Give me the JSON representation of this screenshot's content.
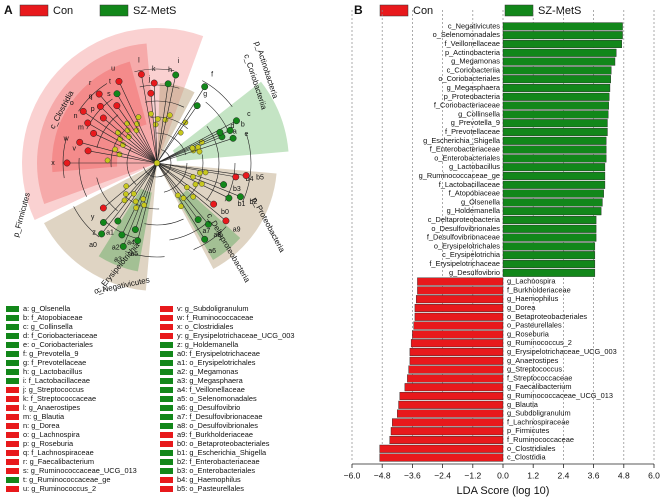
{
  "chart_data": {
    "type": "hbar",
    "panel": "B",
    "xlabel": "LDA Score (log 10)",
    "xlim": [
      -6,
      6
    ],
    "xticks": [
      {
        "value": -6,
        "label": "−6.0"
      },
      {
        "value": -4.8,
        "label": "−4.8"
      },
      {
        "value": -3.6,
        "label": "−3.6"
      },
      {
        "value": -2.4,
        "label": "−2.4"
      },
      {
        "value": -1.2,
        "label": "−1.2"
      },
      {
        "value": 0,
        "label": "0.0"
      },
      {
        "value": 1.2,
        "label": "1.2"
      },
      {
        "value": 2.4,
        "label": "2.4"
      },
      {
        "value": 3.6,
        "label": "3.6"
      },
      {
        "value": 4.8,
        "label": "4.8"
      },
      {
        "value": 6,
        "label": "6.0"
      }
    ],
    "grid": true,
    "categories": [
      "c_Negativicutes",
      "o_Selenomonadales",
      "f_Veillonellaceae",
      "p_Actinobacteria",
      "g_Megamonas",
      "c_Coriobacteriia",
      "o_Coriobacteriales",
      "g_Megasphaera",
      "p_Proteobacteria",
      "f_Coriobacteriaceae",
      "g_Collinsella",
      "g_Prevotella_9",
      "f_Prevotellaceae",
      "g_Escherichia_Shigella",
      "f_Enterobacteriaceae",
      "o_Enterobacteriales",
      "g_Lactobacillus",
      "g_Ruminococcaceae_ge",
      "f_Lactobacillaceae",
      "f_Atopobiaceae",
      "g_Olsenella",
      "g_Holdemanella",
      "c_Deltaproteobacteria",
      "o_Desulfovibrionales",
      "f_Desulfovibrionaceae",
      "o_Erysipelotrichales",
      "c_Erysipelotrichia",
      "f_Erysipelotrichaceae",
      "g_Desulfovibrio",
      "g_Lachnospira",
      "f_Burkholderiaceae",
      "g_Haemophilus",
      "g_Dorea",
      "o_Betaproteobacteriales",
      "o_Pasteurellales",
      "g_Roseburia",
      "g_Ruminococcus_2",
      "g_Erysipelotrichaceae_UCG_003",
      "g_Anaerostipes",
      "g_Streptococcus",
      "f_Streptococcaceae",
      "g_Faecalibacterium",
      "g_Ruminococcaceae_UCG_013",
      "g_Blautia",
      "g_Subdoligranulum",
      "f_Lachnospiraceae",
      "p_Firmicutes",
      "f_Ruminococcaceae",
      "o_Clostridiales",
      "c_Clostridia"
    ],
    "series": [
      {
        "name": "Con",
        "color": "#e8191c",
        "values": [
          null,
          null,
          null,
          null,
          null,
          null,
          null,
          null,
          null,
          null,
          null,
          null,
          null,
          null,
          null,
          null,
          null,
          null,
          null,
          null,
          null,
          null,
          null,
          null,
          null,
          null,
          null,
          null,
          null,
          -3.4,
          -3.4,
          -3.45,
          -3.5,
          -3.5,
          -3.55,
          -3.6,
          -3.65,
          -3.7,
          -3.7,
          -3.75,
          -3.8,
          -3.9,
          -4.1,
          -4.15,
          -4.2,
          -4.4,
          -4.45,
          -4.5,
          -4.9,
          -4.9
        ]
      },
      {
        "name": "SZ-MetS",
        "color": "#12871a",
        "values": [
          4.75,
          4.75,
          4.72,
          4.5,
          4.45,
          4.3,
          4.28,
          4.25,
          4.22,
          4.2,
          4.18,
          4.15,
          4.15,
          4.1,
          4.1,
          4.1,
          4.05,
          4.05,
          4.05,
          4.0,
          3.95,
          3.9,
          3.7,
          3.7,
          3.7,
          3.65,
          3.65,
          3.65,
          3.65,
          null,
          null,
          null,
          null,
          null,
          null,
          null,
          null,
          null,
          null,
          null,
          null,
          null,
          null,
          null,
          null,
          null,
          null,
          null,
          null,
          null
        ]
      }
    ]
  },
  "cladogram": {
    "panel": "A",
    "clade_labels": [
      "p_Firmicutes",
      "c_Clostridia",
      "c_Erysipelotrichia",
      "c_Negativicutes",
      "p_Actinobacteria",
      "c_Coriobacteriia",
      "p_Proteobacteria",
      "c_Deltaproteobacteria"
    ],
    "legend": [
      {
        "key": "a",
        "label": "a: g_Olsenella",
        "color": "#12871a"
      },
      {
        "key": "b",
        "label": "b: f_Atopobiaceae",
        "color": "#12871a"
      },
      {
        "key": "c",
        "label": "c: g_Collinsella",
        "color": "#12871a"
      },
      {
        "key": "d",
        "label": "d: f_Coriobacteriaceae",
        "color": "#12871a"
      },
      {
        "key": "e",
        "label": "e: o_Coriobacteriales",
        "color": "#12871a"
      },
      {
        "key": "f",
        "label": "f: g_Prevotella_9",
        "color": "#12871a"
      },
      {
        "key": "g",
        "label": "g: f_Prevotellaceae",
        "color": "#12871a"
      },
      {
        "key": "h",
        "label": "h: g_Lactobacillus",
        "color": "#12871a"
      },
      {
        "key": "i",
        "label": "i: f_Lactobacillaceae",
        "color": "#12871a"
      },
      {
        "key": "j",
        "label": "j: g_Streptococcus",
        "color": "#e8191c"
      },
      {
        "key": "k",
        "label": "k: f_Streptococcaceae",
        "color": "#e8191c"
      },
      {
        "key": "l",
        "label": "l: g_Anaerostipes",
        "color": "#e8191c"
      },
      {
        "key": "m",
        "label": "m: g_Blautia",
        "color": "#e8191c"
      },
      {
        "key": "n",
        "label": "n: g_Dorea",
        "color": "#e8191c"
      },
      {
        "key": "o",
        "label": "o: g_Lachnospira",
        "color": "#e8191c"
      },
      {
        "key": "p",
        "label": "p: g_Roseburia",
        "color": "#e8191c"
      },
      {
        "key": "q",
        "label": "q: f_Lachnospiraceae",
        "color": "#e8191c"
      },
      {
        "key": "r",
        "label": "r: g_Faecalibacterium",
        "color": "#e8191c"
      },
      {
        "key": "s",
        "label": "s: g_Ruminococcaceae_UCG_013",
        "color": "#e8191c"
      },
      {
        "key": "t",
        "label": "t: g_Ruminococcaceae_ge",
        "color": "#12871a"
      },
      {
        "key": "u",
        "label": "u: g_Ruminococcus_2",
        "color": "#e8191c"
      },
      {
        "key": "v",
        "label": "v: g_Subdoligranulum",
        "color": "#e8191c"
      },
      {
        "key": "w",
        "label": "w: f_Ruminococcaceae",
        "color": "#e8191c"
      },
      {
        "key": "x",
        "label": "x: o_Clostridiales",
        "color": "#e8191c"
      },
      {
        "key": "y",
        "label": "y: g_Erysipelotrichaceae_UCG_003",
        "color": "#e8191c"
      },
      {
        "key": "z",
        "label": "z: g_Holdemanella",
        "color": "#12871a"
      },
      {
        "key": "a0",
        "label": "a0: f_Erysipelotrichaceae",
        "color": "#12871a"
      },
      {
        "key": "a1",
        "label": "a1: o_Erysipelotrichales",
        "color": "#12871a"
      },
      {
        "key": "a2",
        "label": "a2: g_Megamonas",
        "color": "#12871a"
      },
      {
        "key": "a3",
        "label": "a3: g_Megasphaera",
        "color": "#12871a"
      },
      {
        "key": "a4",
        "label": "a4: f_Veillonellaceae",
        "color": "#12871a"
      },
      {
        "key": "a5",
        "label": "a5: o_Selenomonadales",
        "color": "#12871a"
      },
      {
        "key": "a6",
        "label": "a6: g_Desulfovibrio",
        "color": "#12871a"
      },
      {
        "key": "a7",
        "label": "a7: f_Desulfovibrionaceae",
        "color": "#12871a"
      },
      {
        "key": "a8",
        "label": "a8: o_Desulfovibrionales",
        "color": "#12871a"
      },
      {
        "key": "a9",
        "label": "a9: f_Burkholderiaceae",
        "color": "#e8191c"
      },
      {
        "key": "b0",
        "label": "b0: o_Betaproteobacteriales",
        "color": "#e8191c"
      },
      {
        "key": "b1",
        "label": "b1: g_Escherichia_Shigella",
        "color": "#12871a"
      },
      {
        "key": "b2",
        "label": "b2: f_Enterobacteriaceae",
        "color": "#12871a"
      },
      {
        "key": "b3",
        "label": "b3: o_Enterobacteriales",
        "color": "#12871a"
      },
      {
        "key": "b4",
        "label": "b4: g_Haemophilus",
        "color": "#e8191c"
      },
      {
        "key": "b5",
        "label": "b5: o_Pasteurellales",
        "color": "#e8191c"
      }
    ]
  }
}
